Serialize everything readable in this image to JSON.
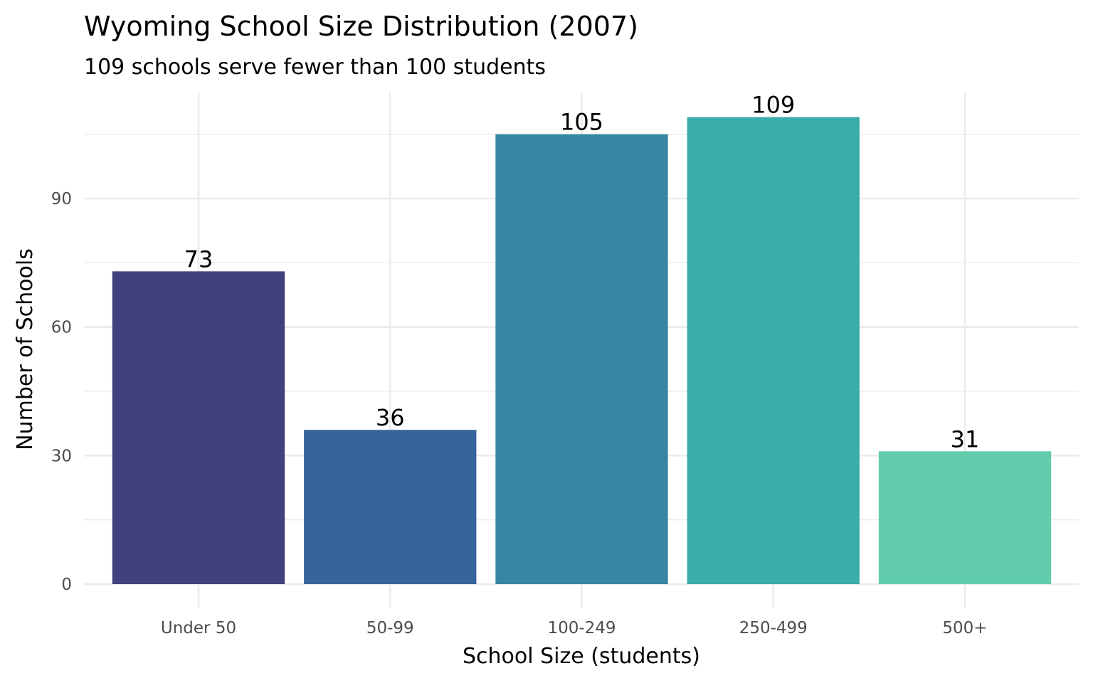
{
  "chart_data": {
    "type": "bar",
    "title": "Wyoming School Size Distribution (2007)",
    "subtitle": "109 schools serve fewer than 100 students",
    "xlabel": "School Size (students)",
    "ylabel": "Number of Schools",
    "categories": [
      "Under 50",
      "50-99",
      "100-249",
      "250-499",
      "500+"
    ],
    "values": [
      73,
      36,
      105,
      109,
      31
    ],
    "data_labels": [
      "73",
      "36",
      "105",
      "109",
      "31"
    ],
    "colors": [
      "#42407d",
      "#38649c",
      "#3587a3",
      "#3aada9",
      "#61cdac"
    ],
    "y_ticks": [
      0,
      30,
      60,
      90
    ],
    "y_tick_labels": [
      "0",
      "30",
      "60",
      "90"
    ],
    "y_minor_ticks": [
      15,
      45,
      75,
      105
    ],
    "ylim": [
      0,
      114.5
    ],
    "grid": true,
    "legend": "none"
  }
}
